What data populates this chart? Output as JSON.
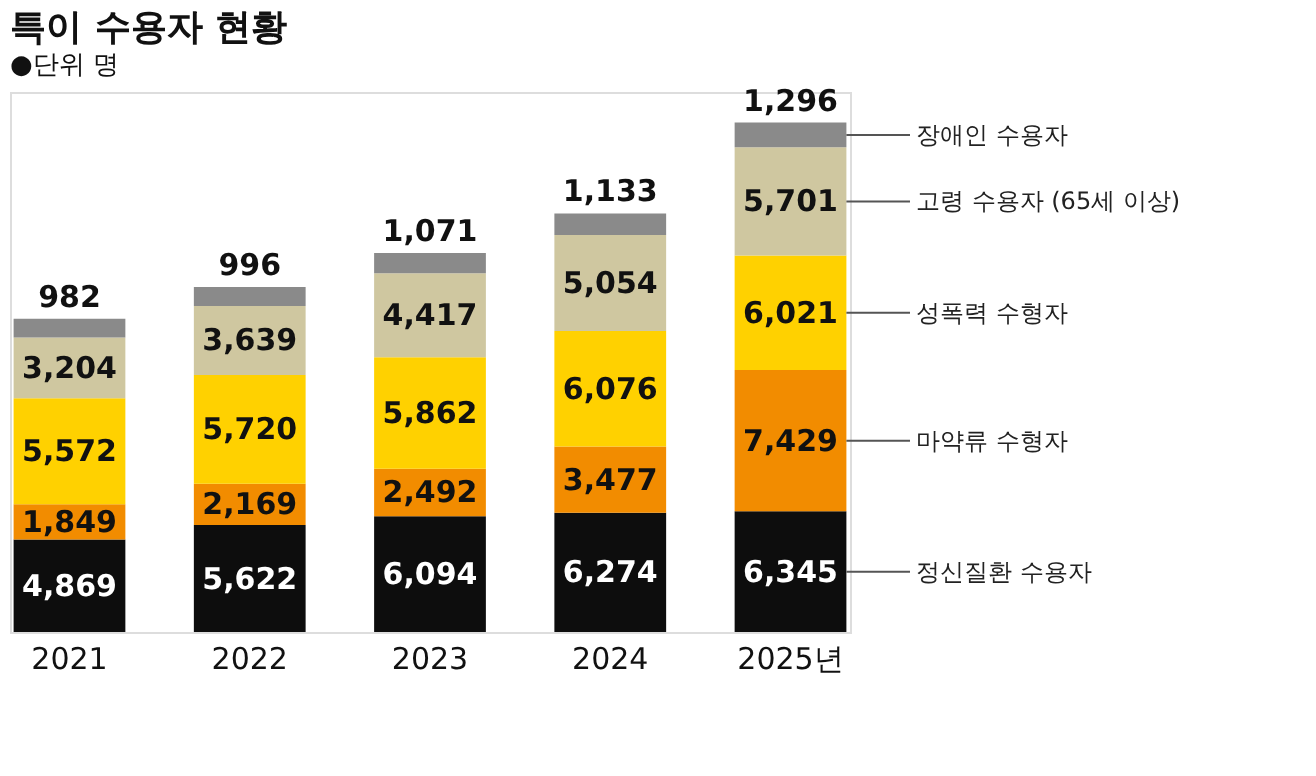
{
  "chart_data": {
    "type": "bar",
    "title": "특이 수용자 현황",
    "subtitle": "●단위 명",
    "categories": [
      "2021",
      "2022",
      "2023",
      "2024",
      "2025년"
    ],
    "stacked": true,
    "legend": "right",
    "tick_labels": "x",
    "series": [
      {
        "name": "정신질환 수용자",
        "color": "#0d0d0d",
        "values": [
          4869,
          5622,
          6094,
          6274,
          6345
        ],
        "value_labels": [
          "4,869",
          "5,622",
          "6,094",
          "6,274",
          "6,345"
        ]
      },
      {
        "name": "마약류 수형자",
        "color": "#f28c00",
        "values": [
          1849,
          2169,
          2492,
          3477,
          7429
        ],
        "value_labels": [
          "1,849",
          "2,169",
          "2,492",
          "3,477",
          "7,429"
        ]
      },
      {
        "name": "성폭력 수형자",
        "color": "#ffd100",
        "values": [
          5572,
          5720,
          5862,
          6076,
          6021
        ],
        "value_labels": [
          "5,572",
          "5,720",
          "5,862",
          "6,076",
          "6,021"
        ]
      },
      {
        "name": "고령 수용자 (65세 이상)",
        "color": "#cfc7a0",
        "values": [
          3204,
          3639,
          4417,
          5054,
          5701
        ],
        "value_labels": [
          "3,204",
          "3,639",
          "4,417",
          "5,054",
          "5,701"
        ]
      },
      {
        "name": "장애인 수용자",
        "color": "#8a8a8a",
        "values": [
          982,
          996,
          1071,
          1133,
          1296
        ],
        "value_labels": [
          "982",
          "996",
          "1,071",
          "1,133",
          "1,296"
        ]
      }
    ]
  }
}
